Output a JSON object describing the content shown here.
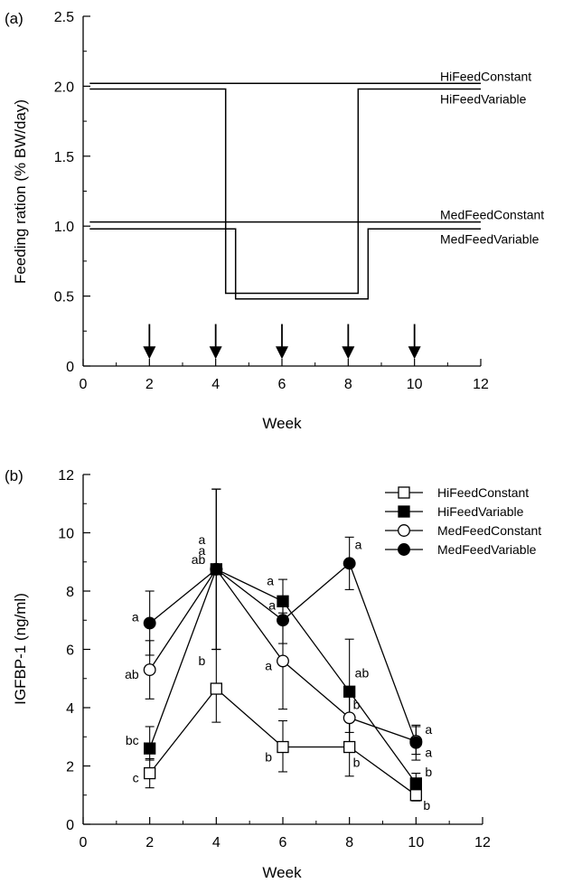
{
  "chart_data": [
    {
      "type": "line",
      "panel_label": "(a)",
      "xlabel": "Week",
      "ylabel": "Feeding ration (% BW/day)",
      "xlim": [
        0,
        12
      ],
      "ylim": [
        0,
        2.5
      ],
      "x_ticks": [
        "0",
        "2",
        "4",
        "6",
        "8",
        "10",
        "12"
      ],
      "y_ticks": [
        "0",
        "0.5",
        "1.0",
        "1.5",
        "2.0",
        "2.5"
      ],
      "sampling_weeks": [
        2,
        4,
        6,
        8,
        10
      ],
      "series": [
        {
          "name": "HiFeedConstant",
          "points": [
            [
              0.2,
              2.02
            ],
            [
              12,
              2.02
            ]
          ]
        },
        {
          "name": "HiFeedVariable",
          "points": [
            [
              0.2,
              1.98
            ],
            [
              4.3,
              1.98
            ],
            [
              4.3,
              0.52
            ],
            [
              8.3,
              0.52
            ],
            [
              8.3,
              1.98
            ],
            [
              12,
              1.98
            ]
          ]
        },
        {
          "name": "MedFeedConstant",
          "points": [
            [
              0.2,
              1.03
            ],
            [
              12,
              1.03
            ]
          ]
        },
        {
          "name": "MedFeedVariable",
          "points": [
            [
              0.2,
              0.98
            ],
            [
              4.6,
              0.98
            ],
            [
              4.6,
              0.48
            ],
            [
              8.6,
              0.48
            ],
            [
              8.6,
              0.98
            ],
            [
              12,
              0.98
            ]
          ]
        }
      ]
    },
    {
      "type": "line",
      "panel_label": "(b)",
      "xlabel": "Week",
      "ylabel": "IGFBP-1 (ng/ml)",
      "xlim": [
        0,
        12
      ],
      "ylim": [
        0,
        12
      ],
      "x_ticks": [
        "0",
        "2",
        "4",
        "6",
        "8",
        "10",
        "12"
      ],
      "y_ticks": [
        "0",
        "2",
        "4",
        "6",
        "8",
        "10",
        "12"
      ],
      "legend_position": "top-right",
      "x": [
        2,
        4,
        6,
        8,
        10
      ],
      "series": [
        {
          "name": "HiFeedConstant",
          "marker": "open-square",
          "values": [
            1.75,
            4.65,
            2.65,
            2.65,
            1.0
          ],
          "err_low": [
            0.5,
            1.15,
            0.85,
            1.0,
            0.2
          ],
          "err_high": [
            0.5,
            1.35,
            0.9,
            0.95,
            0.35
          ],
          "letters": [
            "c",
            "b",
            "b",
            "b",
            "b"
          ]
        },
        {
          "name": "HiFeedVariable",
          "marker": "filled-square",
          "values": [
            2.6,
            8.75,
            7.65,
            4.55,
            1.4
          ],
          "err_low": [
            0.4,
            2.75,
            0.75,
            1.4,
            0.45
          ],
          "err_high": [
            0.75,
            2.75,
            0.75,
            1.8,
            0.35
          ],
          "letters": [
            "bc",
            "a",
            "a",
            "ab",
            "b"
          ]
        },
        {
          "name": "MedFeedConstant",
          "marker": "open-circle",
          "values": [
            5.3,
            8.75,
            5.6,
            3.65,
            2.85
          ],
          "err_low": [
            1.0,
            2.75,
            1.65,
            1.0,
            0.45
          ],
          "err_high": [
            1.0,
            2.75,
            1.65,
            1.0,
            0.5
          ],
          "letters": [
            "ab",
            "ab",
            "a",
            "b",
            "a"
          ]
        },
        {
          "name": "MedFeedVariable",
          "marker": "filled-circle",
          "values": [
            6.9,
            8.75,
            7.0,
            8.95,
            2.8
          ],
          "err_low": [
            1.1,
            2.75,
            0.8,
            0.9,
            0.6
          ],
          "err_high": [
            1.1,
            2.75,
            0.8,
            0.9,
            0.6
          ],
          "letters": [
            "a",
            "a",
            "a",
            "a",
            "a"
          ]
        }
      ]
    }
  ]
}
